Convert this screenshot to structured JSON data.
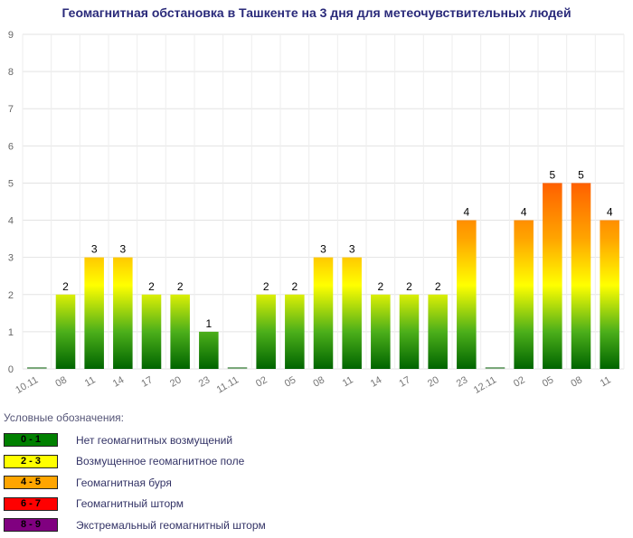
{
  "title": "Геомагнитная обстановка в Ташкенте на 3 дня для метеочувствительных людей",
  "chart_data": {
    "type": "bar",
    "categories": [
      "10.11",
      "08",
      "11",
      "14",
      "17",
      "20",
      "23",
      "11.11",
      "02",
      "05",
      "08",
      "11",
      "14",
      "17",
      "20",
      "23",
      "12.11",
      "02",
      "05",
      "08",
      "11"
    ],
    "values": [
      0,
      2,
      3,
      3,
      2,
      2,
      1,
      0,
      2,
      2,
      3,
      3,
      2,
      2,
      2,
      4,
      0,
      4,
      5,
      5,
      4
    ],
    "ylim": [
      0,
      9
    ],
    "yticks": [
      "0",
      "1",
      "2",
      "3",
      "4",
      "5",
      "6",
      "7",
      "8",
      "9"
    ],
    "grid": true,
    "gradient_colors": [
      "#006400",
      "#4caf1a",
      "#ffff00",
      "#ffa500",
      "#ff6000"
    ]
  },
  "legend": {
    "title": "Условные обозначения:",
    "items": [
      {
        "range": "0 - 1",
        "label": "Нет геомагнитных возмущений",
        "color": "#008000",
        "text_color": "#000000"
      },
      {
        "range": "2 - 3",
        "label": "Возмущенное геомагнитное поле",
        "color": "#ffff00",
        "text_color": "#000000"
      },
      {
        "range": "4 - 5",
        "label": "Геомагнитная буря",
        "color": "#ffa500",
        "text_color": "#000000"
      },
      {
        "range": "6 - 7",
        "label": "Геомагнитный шторм",
        "color": "#ff0000",
        "text_color": "#000000"
      },
      {
        "range": "8 - 9",
        "label": "Экстремальный геомагнитный шторм",
        "color": "#800080",
        "text_color": "#000000"
      }
    ]
  }
}
